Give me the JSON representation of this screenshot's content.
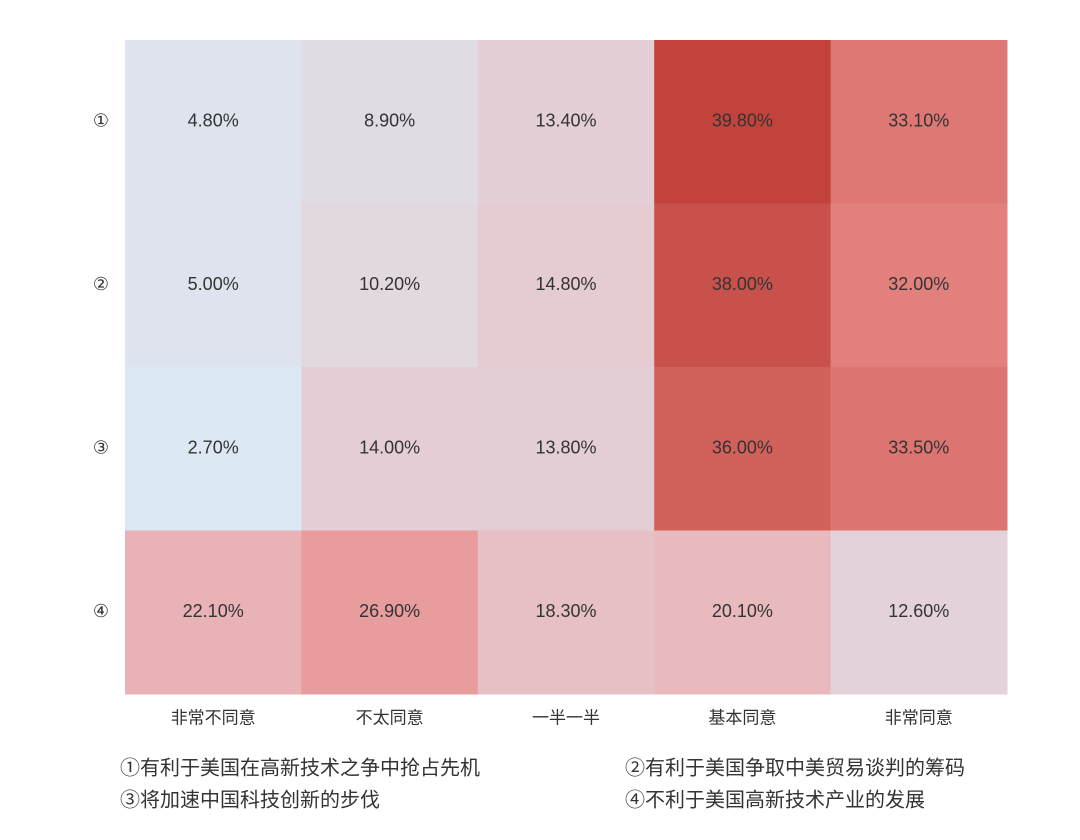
{
  "chart_data": {
    "type": "heatmap",
    "x_categories": [
      "非常不同意",
      "不太同意",
      "一半一半",
      "基本同意",
      "非常同意"
    ],
    "y_categories": [
      "①",
      "②",
      "③",
      "④"
    ],
    "values": [
      [
        4.8,
        8.9,
        13.4,
        39.8,
        33.1
      ],
      [
        5.0,
        10.2,
        14.8,
        38.0,
        32.0
      ],
      [
        2.7,
        14.0,
        13.8,
        36.0,
        33.5
      ],
      [
        22.1,
        26.9,
        18.3,
        20.1,
        12.6
      ]
    ],
    "value_labels": [
      [
        "4.80%",
        "8.90%",
        "13.40%",
        "39.80%",
        "33.10%"
      ],
      [
        "5.00%",
        "10.20%",
        "14.80%",
        "38.00%",
        "32.00%"
      ],
      [
        "2.70%",
        "14.00%",
        "13.80%",
        "36.00%",
        "33.50%"
      ],
      [
        "22.10%",
        "26.90%",
        "18.30%",
        "20.10%",
        "12.60%"
      ]
    ],
    "colors": [
      "#dce8f3",
      "#e3d4dc",
      "#e9b6ba",
      "#e88c8a",
      "#c2433c"
    ],
    "annotations": [
      "①有利于美国在高新技术之争中抢占先机",
      "②有利于美国争取中美贸易谈判的筹码",
      "③将加速中国科技创新的步伐",
      "④不利于美国高新技术产业的发展"
    ]
  }
}
